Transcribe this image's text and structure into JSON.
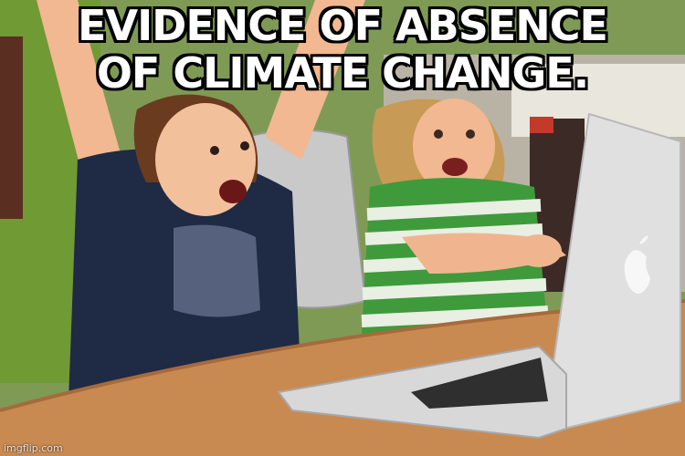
{
  "meme": {
    "caption_line1": "EVIDENCE OF ABSENCE",
    "caption_line2": "OF CLIMATE CHANGE.",
    "watermark": "imgflip.com"
  },
  "scene": {
    "subjects": [
      "excited-boy",
      "excited-girl",
      "laptop"
    ],
    "colors": {
      "wall": "#6c8f3a",
      "table": "#c98a52",
      "boy_shirt": "#1f2a44",
      "girl_shirt_stripe_green": "#3f9a3c",
      "girl_shirt_stripe_white": "#e9efe2",
      "laptop": "#dedede",
      "skin": "#f0b58f"
    }
  }
}
